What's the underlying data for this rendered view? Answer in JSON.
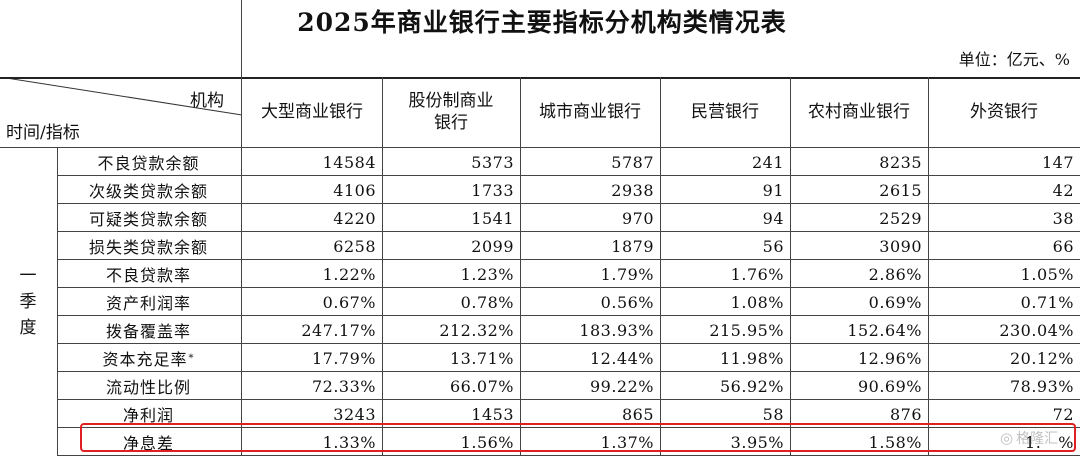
{
  "title": "2025年商业银行主要指标分机构类情况表",
  "unit": "单位：亿元、%",
  "corner": {
    "top": "机构",
    "bottom": "时间/指标"
  },
  "season": [
    "一",
    "季",
    "度"
  ],
  "columns": [
    {
      "key": "large",
      "lines": [
        "大型商业银行"
      ]
    },
    {
      "key": "joint",
      "lines": [
        "股份制商业",
        "银行"
      ]
    },
    {
      "key": "city",
      "lines": [
        "城市商业银行"
      ]
    },
    {
      "key": "private",
      "lines": [
        "民营银行"
      ]
    },
    {
      "key": "rural",
      "lines": [
        "农村商业银行"
      ]
    },
    {
      "key": "foreign",
      "lines": [
        "外资银行"
      ]
    }
  ],
  "rows": [
    {
      "label": "不良贷款余额",
      "values": [
        "14584",
        "5373",
        "5787",
        "241",
        "8235",
        "147"
      ]
    },
    {
      "label": "次级类贷款余额",
      "values": [
        "4106",
        "1733",
        "2938",
        "91",
        "2615",
        "42"
      ]
    },
    {
      "label": "可疑类贷款余额",
      "values": [
        "4220",
        "1541",
        "970",
        "94",
        "2529",
        "38"
      ]
    },
    {
      "label": "损失类贷款余额",
      "values": [
        "6258",
        "2099",
        "1879",
        "56",
        "3090",
        "66"
      ]
    },
    {
      "label": "不良贷款率",
      "values": [
        "1.22%",
        "1.23%",
        "1.79%",
        "1.76%",
        "2.86%",
        "1.05%"
      ]
    },
    {
      "label": "资产利润率",
      "values": [
        "0.67%",
        "0.78%",
        "0.56%",
        "1.08%",
        "0.69%",
        "0.71%"
      ]
    },
    {
      "label": "拨备覆盖率",
      "values": [
        "247.17%",
        "212.32%",
        "183.93%",
        "215.95%",
        "152.64%",
        "230.04%"
      ]
    },
    {
      "label": "资本充足率",
      "sup": "*",
      "values": [
        "17.79%",
        "13.71%",
        "12.44%",
        "11.98%",
        "12.96%",
        "20.12%"
      ]
    },
    {
      "label": "流动性比例",
      "values": [
        "72.33%",
        "66.07%",
        "99.22%",
        "56.92%",
        "90.69%",
        "78.93%"
      ]
    },
    {
      "label": "净利润",
      "values": [
        "3243",
        "1453",
        "865",
        "58",
        "876",
        "72"
      ]
    },
    {
      "label": "净息差",
      "values": [
        "1.33%",
        "1.56%",
        "1.37%",
        "3.95%",
        "1.58%",
        "1.__%"
      ]
    }
  ],
  "highlight_color": "#e02020",
  "watermark": "格隆汇"
}
